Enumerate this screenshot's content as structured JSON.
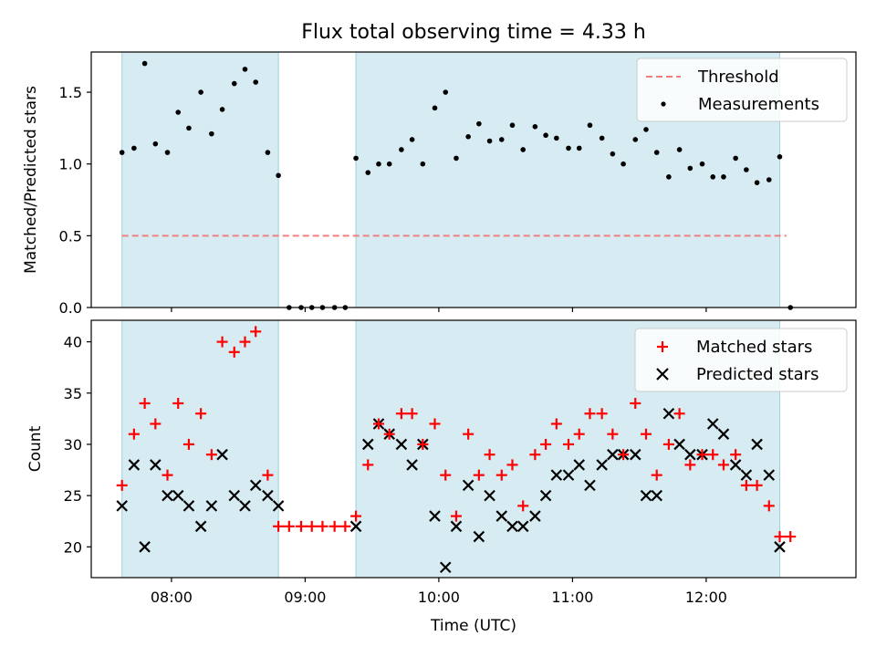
{
  "chart_data": [
    {
      "type": "scatter",
      "title": "Flux total observing time = 4.33 h",
      "ylabel": "Matched/Predicted stars",
      "xlabel": "",
      "ylim": [
        0,
        1.78
      ],
      "xlim_hours": [
        7.4,
        13.12
      ],
      "yticks": [
        {
          "v": 0.0,
          "label": "0.0"
        },
        {
          "v": 0.5,
          "label": "0.5"
        },
        {
          "v": 1.0,
          "label": "1.0"
        },
        {
          "v": 1.5,
          "label": "1.5"
        }
      ],
      "shaded_intervals_hours": [
        [
          7.63,
          8.8
        ],
        [
          9.38,
          12.55
        ]
      ],
      "threshold": {
        "name": "Threshold",
        "value": 0.5,
        "x_range_hours": [
          7.63,
          12.6
        ],
        "color": "#f08080"
      },
      "series": [
        {
          "name": "Measurements",
          "marker": "dot",
          "x_hours": [
            7.63,
            7.72,
            7.8,
            7.88,
            7.97,
            8.05,
            8.13,
            8.22,
            8.3,
            8.38,
            8.47,
            8.55,
            8.63,
            8.72,
            8.8,
            8.88,
            8.97,
            9.05,
            9.13,
            9.22,
            9.3,
            9.38,
            9.47,
            9.55,
            9.63,
            9.72,
            9.8,
            9.88,
            9.97,
            10.05,
            10.13,
            10.22,
            10.3,
            10.38,
            10.47,
            10.55,
            10.63,
            10.72,
            10.8,
            10.88,
            10.97,
            11.05,
            11.13,
            11.22,
            11.3,
            11.38,
            11.47,
            11.55,
            11.63,
            11.72,
            11.8,
            11.88,
            11.97,
            12.05,
            12.13,
            12.22,
            12.3,
            12.38,
            12.47,
            12.55,
            12.63
          ],
          "values": [
            1.08,
            1.11,
            1.7,
            1.14,
            1.08,
            1.36,
            1.25,
            1.5,
            1.21,
            1.38,
            1.56,
            1.66,
            1.57,
            1.08,
            0.92,
            0.0,
            0.0,
            0.0,
            0.0,
            0.0,
            0.0,
            1.04,
            0.94,
            1.0,
            1.0,
            1.1,
            1.17,
            1.0,
            1.39,
            1.5,
            1.04,
            1.19,
            1.28,
            1.16,
            1.17,
            1.27,
            1.1,
            1.26,
            1.2,
            1.18,
            1.11,
            1.11,
            1.27,
            1.18,
            1.07,
            1.0,
            1.17,
            1.24,
            1.08,
            0.91,
            1.1,
            0.97,
            1.0,
            0.91,
            0.91,
            1.04,
            0.96,
            0.87,
            0.89,
            1.05,
            0.0
          ],
          "color": "#000000"
        }
      ],
      "legend": [
        "Threshold",
        "Measurements"
      ],
      "legend_position": "top-right"
    },
    {
      "type": "scatter",
      "title": "",
      "ylabel": "Count",
      "xlabel": "Time (UTC)",
      "ylim": [
        17,
        42.1
      ],
      "xlim_hours": [
        7.4,
        13.12
      ],
      "yticks": [
        {
          "v": 20,
          "label": "20"
        },
        {
          "v": 25,
          "label": "25"
        },
        {
          "v": 30,
          "label": "30"
        },
        {
          "v": 35,
          "label": "35"
        },
        {
          "v": 40,
          "label": "40"
        }
      ],
      "xticks": [
        {
          "v": 8,
          "label": "08:00"
        },
        {
          "v": 9,
          "label": "09:00"
        },
        {
          "v": 10,
          "label": "10:00"
        },
        {
          "v": 11,
          "label": "11:00"
        },
        {
          "v": 12,
          "label": "12:00"
        }
      ],
      "shaded_intervals_hours": [
        [
          7.63,
          8.8
        ],
        [
          9.38,
          12.55
        ]
      ],
      "series": [
        {
          "name": "Matched stars",
          "marker": "plus",
          "color": "#ff0000",
          "x_hours": [
            7.63,
            7.72,
            7.8,
            7.88,
            7.97,
            8.05,
            8.13,
            8.22,
            8.3,
            8.38,
            8.47,
            8.55,
            8.63,
            8.72,
            8.8,
            8.88,
            8.97,
            9.05,
            9.13,
            9.22,
            9.3,
            9.38,
            9.47,
            9.55,
            9.63,
            9.72,
            9.8,
            9.88,
            9.97,
            10.05,
            10.13,
            10.22,
            10.3,
            10.38,
            10.47,
            10.55,
            10.63,
            10.72,
            10.8,
            10.88,
            10.97,
            11.05,
            11.13,
            11.22,
            11.3,
            11.38,
            11.47,
            11.55,
            11.63,
            11.72,
            11.8,
            11.88,
            11.97,
            12.05,
            12.13,
            12.22,
            12.3,
            12.38,
            12.47,
            12.55,
            12.63
          ],
          "values": [
            26,
            31,
            34,
            32,
            27,
            34,
            30,
            33,
            29,
            40,
            39,
            40,
            41,
            27,
            22,
            22,
            22,
            22,
            22,
            22,
            22,
            23,
            28,
            32,
            31,
            33,
            33,
            30,
            32,
            27,
            23,
            31,
            27,
            29,
            27,
            28,
            24,
            29,
            30,
            32,
            30,
            31,
            33,
            33,
            31,
            29,
            34,
            31,
            27,
            30,
            33,
            28,
            29,
            29,
            28,
            29,
            26,
            26,
            24,
            21,
            21
          ]
        },
        {
          "name": "Predicted stars",
          "marker": "x",
          "color": "#000000",
          "x_hours": [
            7.63,
            7.72,
            7.8,
            7.88,
            7.97,
            8.05,
            8.13,
            8.22,
            8.3,
            8.38,
            8.47,
            8.55,
            8.63,
            8.72,
            8.8,
            9.38,
            9.47,
            9.55,
            9.63,
            9.72,
            9.8,
            9.88,
            9.97,
            10.05,
            10.13,
            10.22,
            10.3,
            10.38,
            10.47,
            10.55,
            10.63,
            10.72,
            10.8,
            10.88,
            10.97,
            11.05,
            11.13,
            11.22,
            11.3,
            11.38,
            11.47,
            11.55,
            11.63,
            11.72,
            11.8,
            11.88,
            11.97,
            12.05,
            12.13,
            12.22,
            12.3,
            12.38,
            12.47,
            12.55
          ],
          "values": [
            24,
            28,
            20,
            28,
            25,
            25,
            24,
            22,
            24,
            29,
            25,
            24,
            26,
            25,
            24,
            22,
            30,
            32,
            31,
            30,
            28,
            30,
            23,
            18,
            22,
            26,
            21,
            25,
            23,
            22,
            22,
            23,
            25,
            27,
            27,
            28,
            26,
            28,
            29,
            29,
            29,
            25,
            25,
            33,
            30,
            29,
            29,
            32,
            31,
            28,
            27,
            30,
            27,
            20
          ]
        }
      ],
      "legend": [
        "Matched stars",
        "Predicted stars"
      ],
      "legend_position": "top-right"
    }
  ]
}
